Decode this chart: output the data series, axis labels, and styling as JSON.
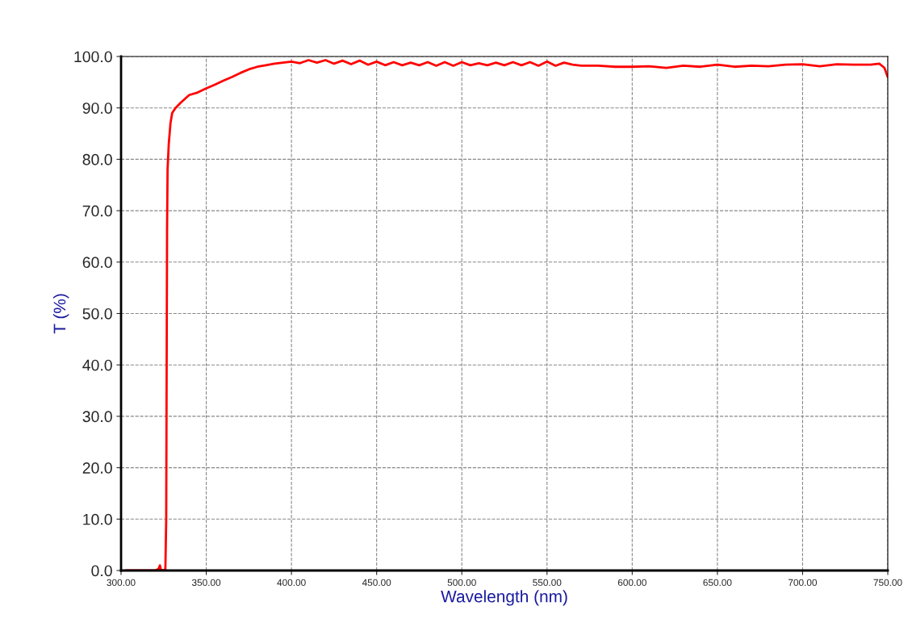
{
  "chart_data": {
    "type": "line",
    "xlabel": "Wavelength (nm)",
    "ylabel": "T (%)",
    "xlim": [
      300,
      750
    ],
    "ylim": [
      0,
      100
    ],
    "xticks": [
      {
        "value": 300,
        "label": "300.00"
      },
      {
        "value": 350,
        "label": "350.00"
      },
      {
        "value": 400,
        "label": "400.00"
      },
      {
        "value": 450,
        "label": "450.00"
      },
      {
        "value": 500,
        "label": "500.00"
      },
      {
        "value": 550,
        "label": "550.00"
      },
      {
        "value": 600,
        "label": "600.00"
      },
      {
        "value": 650,
        "label": "650.00"
      },
      {
        "value": 700,
        "label": "700.00"
      },
      {
        "value": 750,
        "label": "750.00"
      }
    ],
    "yticks": [
      {
        "value": 0,
        "label": "0.0"
      },
      {
        "value": 10,
        "label": "10.0"
      },
      {
        "value": 20,
        "label": "20.0"
      },
      {
        "value": 30,
        "label": "30.0"
      },
      {
        "value": 40,
        "label": "40.0"
      },
      {
        "value": 50,
        "label": "50.0"
      },
      {
        "value": 60,
        "label": "60.0"
      },
      {
        "value": 70,
        "label": "70.0"
      },
      {
        "value": 80,
        "label": "80.0"
      },
      {
        "value": 90,
        "label": "90.0"
      },
      {
        "value": 100,
        "label": "100.0"
      }
    ],
    "grid": true,
    "marker": "none",
    "line_style": "solid",
    "series": [
      {
        "color": "#ff0000",
        "x": [
          303,
          310,
          320,
          322,
          322.8,
          323.5,
          326,
          326.5,
          327,
          327.3,
          328,
          329,
          330,
          332,
          335,
          340,
          345,
          350,
          355,
          360,
          365,
          370,
          375,
          380,
          385,
          390,
          395,
          400,
          405,
          410,
          415,
          420,
          425,
          430,
          435,
          440,
          445,
          450,
          455,
          460,
          465,
          470,
          475,
          480,
          485,
          490,
          495,
          500,
          505,
          510,
          515,
          520,
          525,
          530,
          535,
          540,
          545,
          550,
          555,
          560,
          565,
          570,
          580,
          590,
          600,
          610,
          620,
          630,
          640,
          650,
          660,
          670,
          680,
          690,
          700,
          710,
          720,
          730,
          740,
          745,
          748,
          750
        ],
        "values": [
          0,
          0,
          0,
          0.3,
          1,
          0,
          0.2,
          10,
          66,
          78,
          83,
          87,
          89,
          90,
          91,
          92.5,
          93,
          93.8,
          94.5,
          95.3,
          96,
          96.8,
          97.5,
          98,
          98.3,
          98.6,
          98.8,
          99,
          98.7,
          99.3,
          98.8,
          99.3,
          98.6,
          99.2,
          98.5,
          99.2,
          98.4,
          99,
          98.3,
          98.9,
          98.3,
          98.8,
          98.3,
          98.9,
          98.2,
          98.9,
          98.2,
          98.9,
          98.3,
          98.7,
          98.3,
          98.8,
          98.3,
          98.9,
          98.3,
          98.9,
          98.2,
          99,
          98.2,
          98.8,
          98.4,
          98.2,
          98.2,
          98,
          98,
          98.1,
          97.8,
          98.2,
          98,
          98.4,
          98,
          98.2,
          98.1,
          98.4,
          98.5,
          98.1,
          98.5,
          98.4,
          98.4,
          98.6,
          97.8,
          96
        ]
      }
    ]
  }
}
